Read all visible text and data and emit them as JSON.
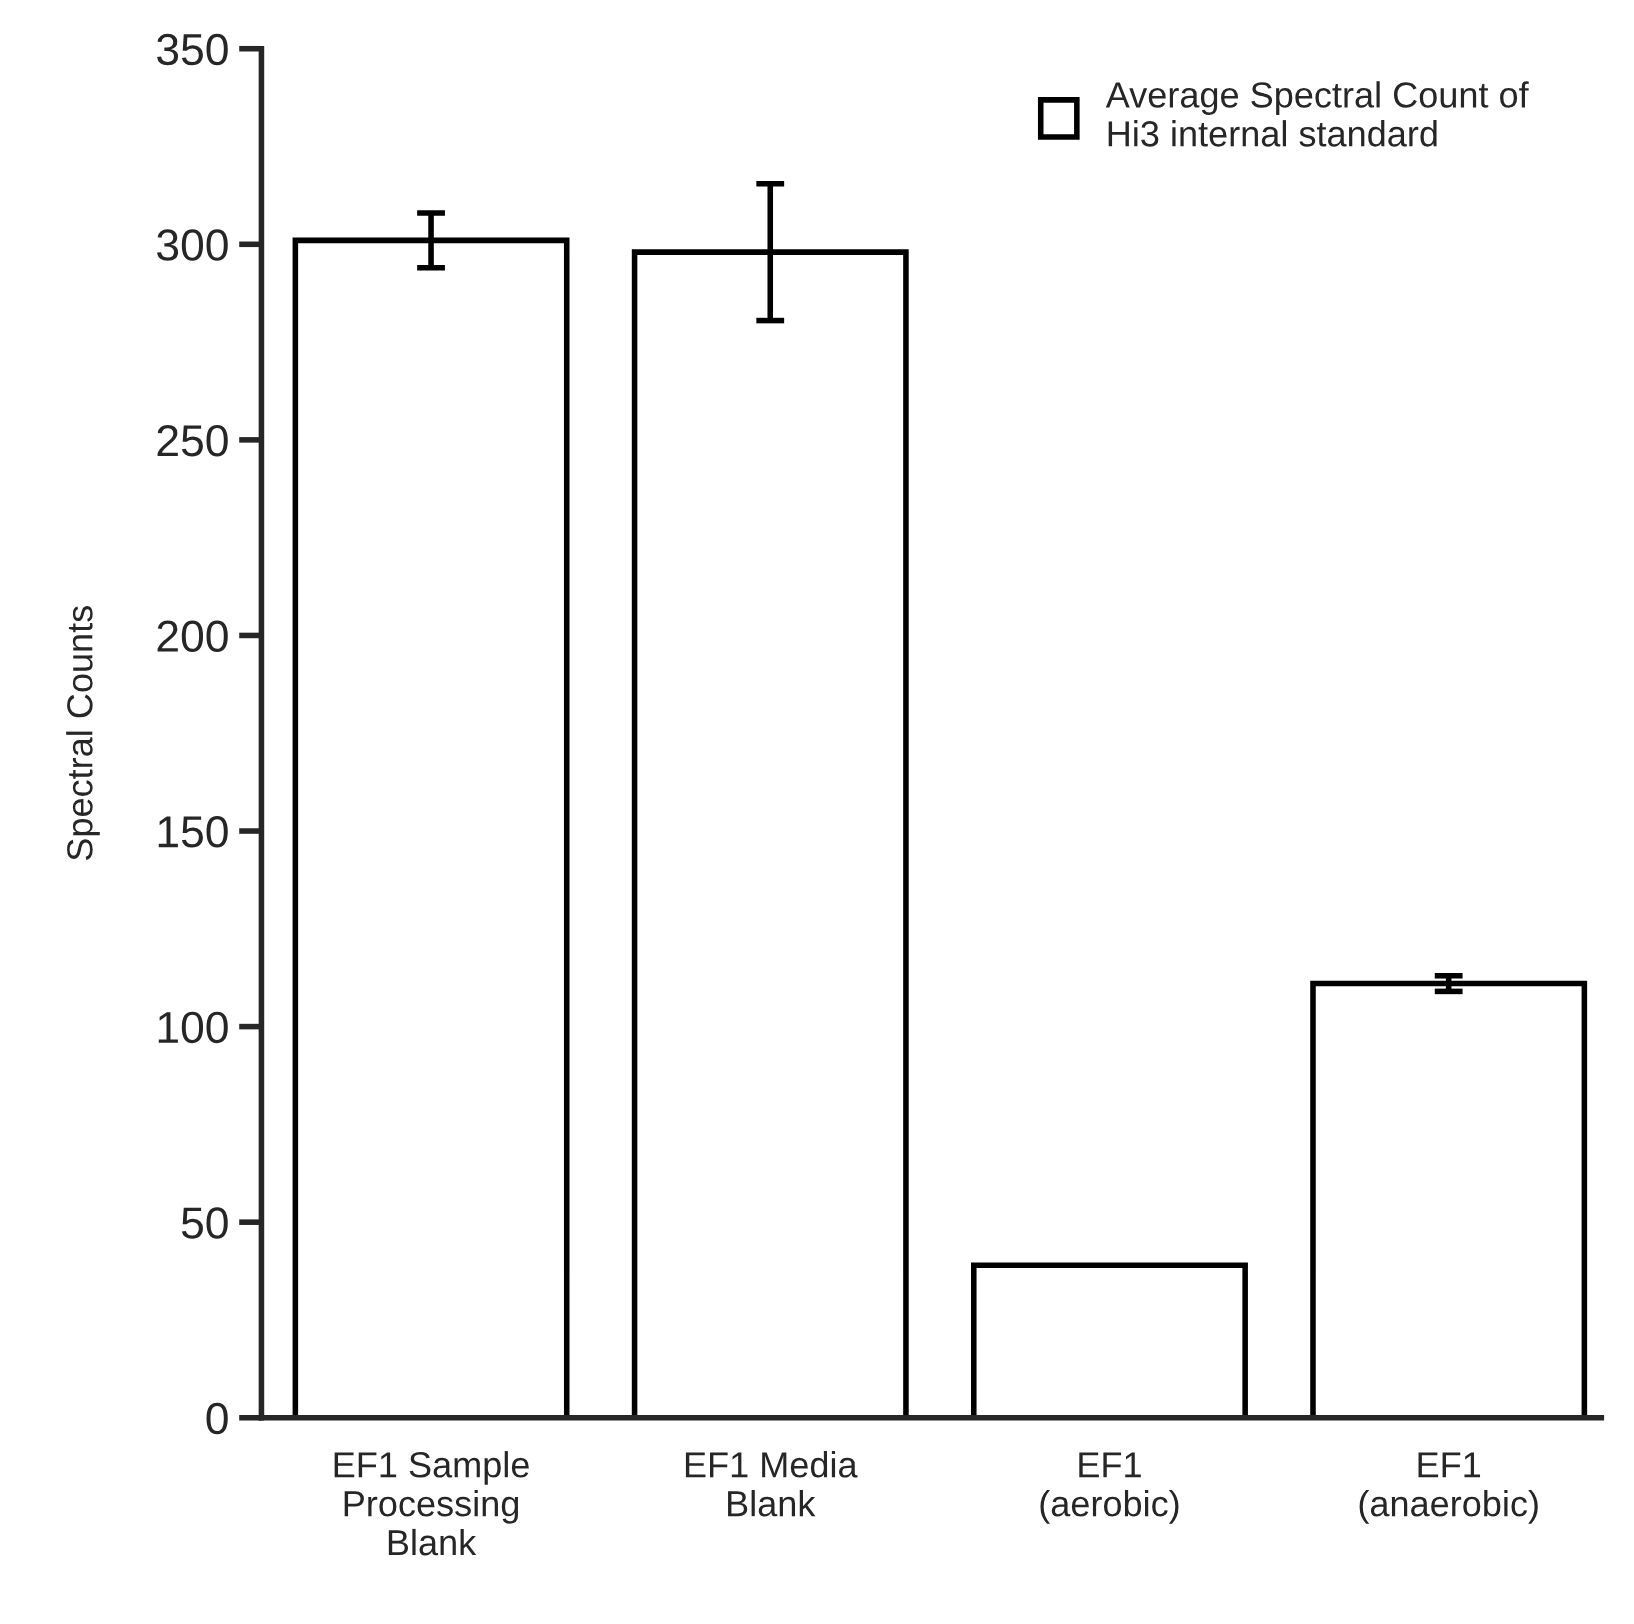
{
  "chart_data": {
    "type": "bar",
    "ylabel": "Spectral Counts",
    "categories": [
      "EF1 Sample\nProcessing\nBlank",
      "EF1 Media\nBlank",
      "EF1\n(aerobic)",
      "EF1\n(anaerobic)"
    ],
    "series": [
      {
        "name": "Average Spectral Count of\nHi3 internal standard",
        "color": "#ffffff",
        "values": [
          301,
          298,
          39,
          111
        ],
        "errors": [
          7,
          17.5,
          null,
          2
        ]
      }
    ],
    "ylim": [
      0,
      350
    ],
    "yticks": [
      0,
      50,
      100,
      150,
      200,
      250,
      300,
      350
    ],
    "grid": false,
    "legend": "top right"
  }
}
